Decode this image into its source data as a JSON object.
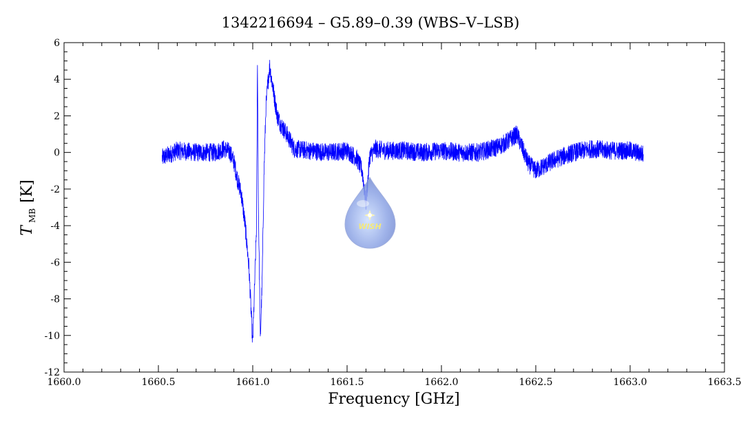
{
  "chart_data": {
    "type": "line",
    "title": "1342216694 – G5.89–0.39 (WBS–V–LSB)",
    "xlabel": "Frequency [GHz]",
    "ylabel": "T",
    "ylabel_subscript": "MB",
    "ylabel_unit": "[K]",
    "xlim": [
      1660.0,
      1663.5
    ],
    "ylim": [
      -12,
      6
    ],
    "x_ticks": [
      "1660.0",
      "1660.5",
      "1661.0",
      "1661.5",
      "1662.0",
      "1662.5",
      "1663.0",
      "1663.5"
    ],
    "y_ticks": [
      "-12",
      "-10",
      "-8",
      "-6",
      "-4",
      "-2",
      "0",
      "2",
      "4",
      "6"
    ],
    "line_color": "#0000ff",
    "grid": false,
    "logo_text": "WISH",
    "series": [
      {
        "x": [
          1660.52,
          1660.6,
          1660.7,
          1660.8,
          1660.85,
          1660.88,
          1660.9,
          1660.92,
          1660.94,
          1660.96,
          1660.98,
          1661.0,
          1661.02,
          1661.025,
          1661.03,
          1661.035,
          1661.04,
          1661.05,
          1661.06,
          1661.07,
          1661.08,
          1661.09,
          1661.1,
          1661.13,
          1661.15,
          1661.18,
          1661.22,
          1661.3,
          1661.4,
          1661.5,
          1661.55,
          1661.58,
          1661.6,
          1661.62,
          1661.65,
          1661.7,
          1661.8,
          1661.9,
          1662.0,
          1662.1,
          1662.2,
          1662.3,
          1662.35,
          1662.4,
          1662.43,
          1662.46,
          1662.5,
          1662.55,
          1662.6,
          1662.65,
          1662.7,
          1662.8,
          1662.9,
          1663.0,
          1663.07
        ],
        "y": [
          -0.3,
          0.1,
          0.0,
          0.0,
          0.2,
          0.0,
          -0.5,
          -1.5,
          -2.3,
          -4.0,
          -6.3,
          -10.5,
          -4.0,
          5.2,
          -3.0,
          -6.5,
          -10.3,
          -7.0,
          -1.0,
          2.5,
          3.8,
          4.7,
          4.0,
          2.0,
          1.5,
          1.0,
          0.2,
          0.1,
          0.0,
          0.1,
          -0.3,
          -1.0,
          -2.8,
          -0.2,
          0.2,
          0.1,
          0.1,
          0.0,
          0.1,
          0.0,
          0.0,
          0.3,
          0.6,
          1.0,
          0.2,
          -0.6,
          -1.0,
          -0.7,
          -0.4,
          -0.2,
          0.0,
          0.2,
          0.1,
          0.1,
          -0.1
        ]
      }
    ]
  }
}
